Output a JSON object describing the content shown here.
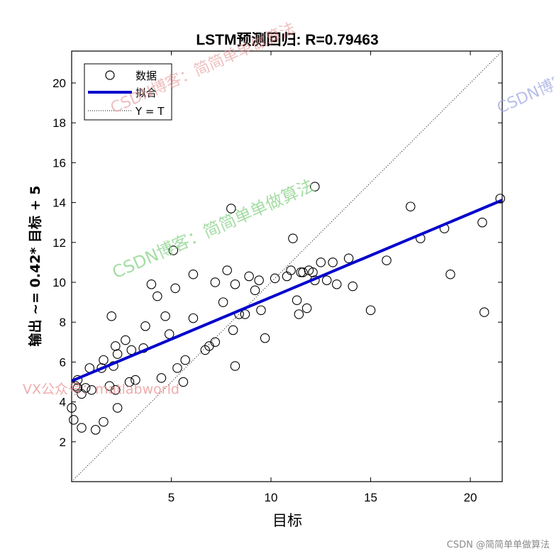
{
  "chart_data": {
    "type": "scatter",
    "title": "LSTM预测回归: R=0.79463",
    "xlabel": "目标",
    "ylabel": "输出 ~= 0.42* 目标 + 5",
    "xlim": [
      0,
      21.6
    ],
    "ylim": [
      0,
      21.6
    ],
    "xticks": [
      5,
      10,
      15,
      20
    ],
    "yticks": [
      2,
      4,
      6,
      8,
      10,
      12,
      14,
      16,
      18,
      20
    ],
    "grid": false,
    "legend_position": "top-left",
    "fit": {
      "slope": 0.42,
      "intercept": 5.05
    },
    "series": [
      {
        "name": "数据",
        "marker": "circle-open",
        "color": "#000000",
        "points": [
          [
            0.2,
            4.8
          ],
          [
            0.0,
            3.7
          ],
          [
            0.1,
            3.1
          ],
          [
            0.3,
            4.7
          ],
          [
            0.5,
            4.4
          ],
          [
            0.3,
            5.1
          ],
          [
            0.5,
            2.7
          ],
          [
            0.7,
            4.7
          ],
          [
            0.9,
            5.7
          ],
          [
            1.0,
            4.6
          ],
          [
            1.2,
            2.6
          ],
          [
            1.5,
            5.7
          ],
          [
            1.6,
            6.1
          ],
          [
            1.6,
            3.0
          ],
          [
            1.9,
            4.8
          ],
          [
            2.0,
            8.3
          ],
          [
            2.1,
            5.8
          ],
          [
            2.2,
            6.8
          ],
          [
            2.3,
            6.4
          ],
          [
            2.2,
            4.6
          ],
          [
            2.3,
            3.7
          ],
          [
            2.7,
            7.1
          ],
          [
            2.9,
            5.0
          ],
          [
            3.0,
            6.6
          ],
          [
            3.2,
            5.1
          ],
          [
            3.6,
            6.7
          ],
          [
            3.7,
            7.8
          ],
          [
            4.0,
            9.9
          ],
          [
            4.3,
            9.3
          ],
          [
            4.5,
            5.2
          ],
          [
            4.7,
            8.3
          ],
          [
            4.9,
            7.4
          ],
          [
            5.1,
            11.6
          ],
          [
            5.2,
            9.7
          ],
          [
            5.3,
            5.7
          ],
          [
            5.6,
            5.0
          ],
          [
            5.7,
            6.1
          ],
          [
            6.1,
            10.4
          ],
          [
            6.1,
            8.2
          ],
          [
            6.7,
            6.6
          ],
          [
            6.9,
            6.8
          ],
          [
            7.2,
            10.0
          ],
          [
            7.2,
            7.0
          ],
          [
            7.6,
            9.0
          ],
          [
            7.8,
            10.6
          ],
          [
            8.0,
            13.7
          ],
          [
            8.1,
            7.6
          ],
          [
            8.2,
            9.9
          ],
          [
            8.2,
            5.8
          ],
          [
            8.4,
            8.4
          ],
          [
            8.7,
            8.4
          ],
          [
            8.9,
            10.3
          ],
          [
            9.2,
            9.6
          ],
          [
            9.4,
            10.1
          ],
          [
            9.5,
            8.6
          ],
          [
            9.7,
            7.2
          ],
          [
            10.2,
            10.2
          ],
          [
            10.8,
            10.3
          ],
          [
            11.0,
            10.6
          ],
          [
            11.1,
            12.2
          ],
          [
            11.3,
            9.1
          ],
          [
            11.4,
            8.4
          ],
          [
            11.5,
            10.5
          ],
          [
            11.6,
            10.5
          ],
          [
            11.8,
            8.7
          ],
          [
            11.9,
            10.6
          ],
          [
            12.1,
            10.5
          ],
          [
            12.2,
            14.8
          ],
          [
            12.2,
            10.1
          ],
          [
            12.5,
            11.0
          ],
          [
            12.8,
            10.1
          ],
          [
            13.1,
            11.0
          ],
          [
            13.3,
            9.9
          ],
          [
            13.9,
            11.2
          ],
          [
            14.1,
            9.8
          ],
          [
            15.0,
            8.6
          ],
          [
            15.8,
            11.1
          ],
          [
            17.0,
            13.8
          ],
          [
            17.5,
            12.2
          ],
          [
            18.7,
            12.7
          ],
          [
            19.0,
            10.4
          ],
          [
            20.6,
            13.0
          ],
          [
            20.7,
            8.5
          ],
          [
            21.5,
            14.2
          ]
        ]
      }
    ]
  },
  "legend": {
    "items": [
      {
        "label": "数据",
        "kind": "marker"
      },
      {
        "label": "拟合",
        "kind": "line",
        "color": "#0000cc"
      },
      {
        "label": "Y = T",
        "kind": "dotted"
      }
    ]
  },
  "watermarks": [
    {
      "text": "CSDN博客：简简单单做算法",
      "color": "#e28a8a"
    },
    {
      "text": "CSDN博客：简简单单做算法",
      "color": "#9aa3e0"
    },
    {
      "text": "CSDN博客：简简单单做算法",
      "color": "#8fd58f"
    },
    {
      "text": "VX公众号：matlabworld",
      "color": "#e89090"
    }
  ],
  "footer": "CSDN @简简单单做算法"
}
